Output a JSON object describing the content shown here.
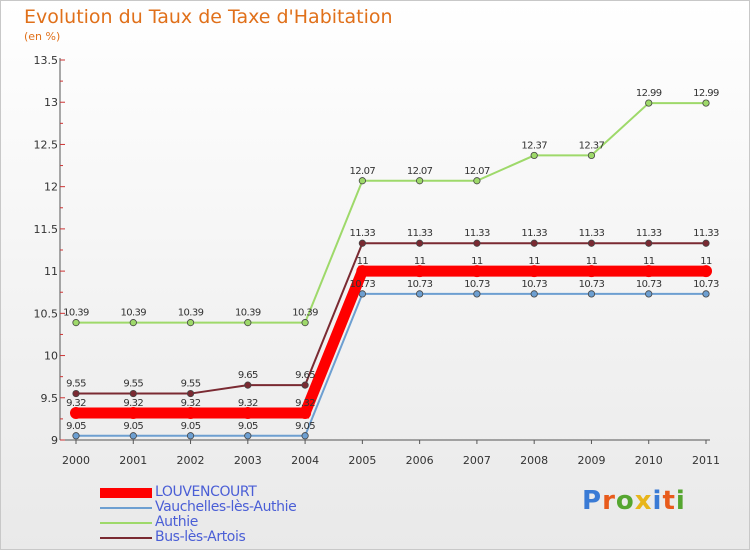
{
  "header": {
    "title": "Evolution du Taux de Taxe d'Habitation",
    "unit": "(en %)"
  },
  "logo": {
    "text": "Proxiti",
    "letters": [
      "P",
      "r",
      "o",
      "x",
      "i",
      "t",
      "i"
    ],
    "colors": [
      "#3a7bd5",
      "#e85b1b",
      "#55a630",
      "#e8b51b",
      "#3a7bd5",
      "#e85b1b",
      "#55a630"
    ]
  },
  "chart_data": {
    "type": "line",
    "title": "Evolution du Taux de Taxe d'Habitation",
    "ylabel": "(en %)",
    "xlabel": "",
    "ylim": [
      9,
      13.5
    ],
    "yticks": [
      "9",
      "9.5",
      "10",
      "10.5",
      "11",
      "11.5",
      "12",
      "12.5",
      "13",
      "13.5"
    ],
    "categories": [
      "2000",
      "2001",
      "2002",
      "2003",
      "2004",
      "2005",
      "2006",
      "2007",
      "2008",
      "2009",
      "2010",
      "2011"
    ],
    "grid": false,
    "legend_position": "bottom-left",
    "series": [
      {
        "name": "LOUVENCOURT",
        "color": "#ff0000",
        "width": "thick",
        "values": [
          9.32,
          9.32,
          9.32,
          9.32,
          9.32,
          11,
          11,
          11,
          11,
          11,
          11,
          11
        ],
        "labels": [
          "9.32",
          "9.32",
          "9.32",
          "9.32",
          "9.32",
          "11",
          "11",
          "11",
          "11",
          "11",
          "11",
          "11"
        ]
      },
      {
        "name": "Vauchelles-lès-Authie",
        "color": "#6d9fd1",
        "width": "thin",
        "values": [
          9.05,
          9.05,
          9.05,
          9.05,
          9.05,
          10.73,
          10.73,
          10.73,
          10.73,
          10.73,
          10.73,
          10.73
        ],
        "labels": [
          "9.05",
          "9.05",
          "9.05",
          "9.05",
          "9.05",
          "10.73",
          "10.73",
          "10.73",
          "10.73",
          "10.73",
          "10.73",
          "10.73"
        ]
      },
      {
        "name": "Authie",
        "color": "#9ed96a",
        "width": "thin",
        "values": [
          10.39,
          10.39,
          10.39,
          10.39,
          10.39,
          12.07,
          12.07,
          12.07,
          12.37,
          12.37,
          12.99,
          12.99
        ],
        "labels": [
          "10.39",
          "10.39",
          "10.39",
          "10.39",
          "10.39",
          "12.07",
          "12.07",
          "12.07",
          "12.37",
          "12.37",
          "12.99",
          "12.99"
        ]
      },
      {
        "name": "Bus-lès-Artois",
        "color": "#7a2a32",
        "width": "thin",
        "values": [
          9.55,
          9.55,
          9.55,
          9.65,
          9.65,
          11.33,
          11.33,
          11.33,
          11.33,
          11.33,
          11.33,
          11.33
        ],
        "labels": [
          "9.55",
          "9.55",
          "9.55",
          "9.65",
          "9.65",
          "11.33",
          "11.33",
          "11.33",
          "11.33",
          "11.33",
          "11.33",
          "11.33"
        ]
      }
    ]
  }
}
